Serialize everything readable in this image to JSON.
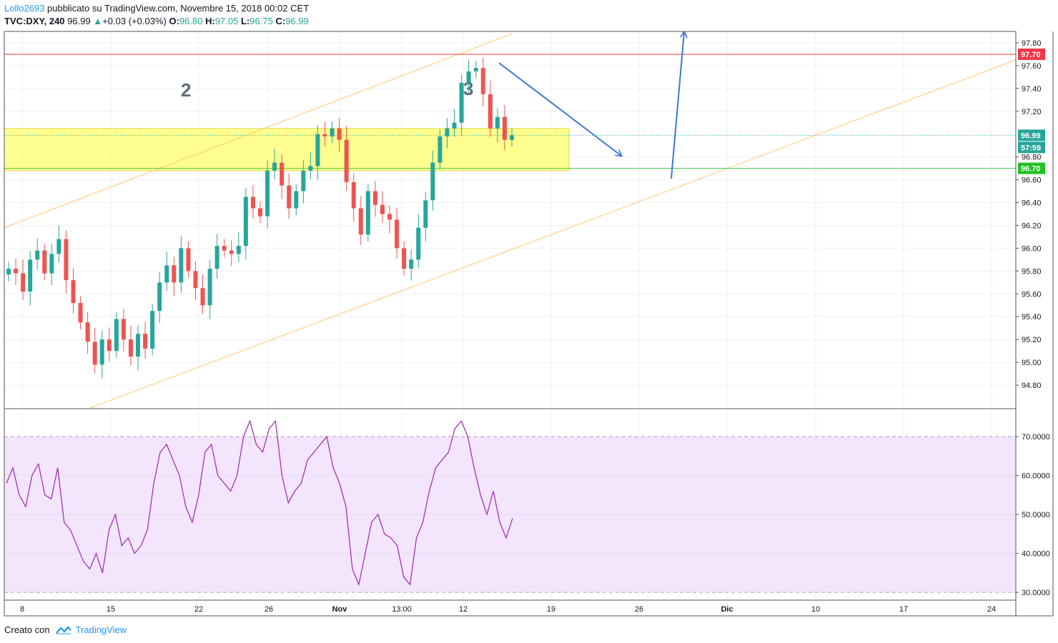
{
  "header": {
    "user": "Lollo2693",
    "published": " pubblicato su TradingView.com, Novembre 15, 2018 00:02 CET",
    "symbol": "TVC:DXY, 240",
    "last": "96.99",
    "change": "+0.03 (+0.03%)",
    "o_label": "O:",
    "o": "96.80",
    "h_label": "H:",
    "h": "97.05",
    "l_label": "L:",
    "l": "96.75",
    "c_label": "C:",
    "c": "96.99"
  },
  "footer": {
    "created": "Creato con",
    "brand": "TradingView"
  },
  "colors": {
    "up": "#26a69a",
    "down": "#ef5350",
    "zone": "#ffff6a",
    "channel": "#ffc870",
    "resistance": "#e53935",
    "support": "#43c743",
    "arrow": "#3a78d4",
    "rsi": "#9c27b0",
    "rsi_band": "#f3e5fc"
  },
  "chart_data": [
    {
      "type": "candlestick",
      "symbol": "TVC:DXY",
      "timeframe": "240",
      "ylim": [
        94.6,
        97.9
      ],
      "y_ticks": [
        "97.80",
        "97.60",
        "97.40",
        "97.20",
        "96.80",
        "96.60",
        "96.40",
        "96.20",
        "96.00",
        "95.80",
        "95.60",
        "95.40",
        "95.20",
        "95.00",
        "94.80"
      ],
      "x_ticks": [
        "8",
        "15",
        "22",
        "26",
        "Nov",
        "13:00",
        "12",
        "19",
        "26",
        "Dic",
        "10",
        "17",
        "24"
      ],
      "closes": [
        95.82,
        95.78,
        95.62,
        95.9,
        95.98,
        95.78,
        95.95,
        96.08,
        95.72,
        95.52,
        95.35,
        95.18,
        94.98,
        95.2,
        95.1,
        95.38,
        95.2,
        95.05,
        95.25,
        95.12,
        95.45,
        95.7,
        95.85,
        95.7,
        96.0,
        95.8,
        95.65,
        95.5,
        95.82,
        96.02,
        95.98,
        95.95,
        96.02,
        96.45,
        96.35,
        96.28,
        96.68,
        96.75,
        96.55,
        96.35,
        96.5,
        96.68,
        96.72,
        97.0,
        96.98,
        97.05,
        96.95,
        96.58,
        96.35,
        96.12,
        96.5,
        96.38,
        96.3,
        96.25,
        96.0,
        95.82,
        95.9,
        96.18,
        96.42,
        96.75,
        96.98,
        97.05,
        97.1,
        97.45,
        97.55,
        97.58,
        97.35,
        97.05,
        97.15,
        96.95,
        96.99
      ],
      "resistance": 97.7,
      "support": 96.7,
      "last_price": 96.99,
      "countdown": "57:59",
      "wave_labels": [
        "2",
        "3"
      ]
    },
    {
      "type": "line",
      "name": "RSI",
      "ylim": [
        28,
        77
      ],
      "y_ticks": [
        "70.0000",
        "60.0000",
        "50.0000",
        "40.0000",
        "30.0000"
      ],
      "band": [
        30,
        70
      ],
      "values": [
        58,
        62,
        55,
        52,
        60,
        63,
        55,
        54,
        62,
        48,
        46,
        42,
        38,
        36,
        40,
        35,
        46,
        50,
        42,
        44,
        40,
        42,
        46,
        58,
        66,
        68,
        64,
        60,
        52,
        48,
        55,
        66,
        68,
        60,
        58,
        56,
        60,
        70,
        74,
        68,
        66,
        72,
        74,
        60,
        53,
        56,
        58,
        64,
        66,
        68,
        70,
        62,
        58,
        52,
        36,
        32,
        40,
        48,
        50,
        45,
        44,
        42,
        34,
        32,
        44,
        48,
        56,
        62,
        64,
        66,
        72,
        74,
        70,
        62,
        55,
        50,
        56,
        48,
        44,
        49
      ]
    }
  ]
}
